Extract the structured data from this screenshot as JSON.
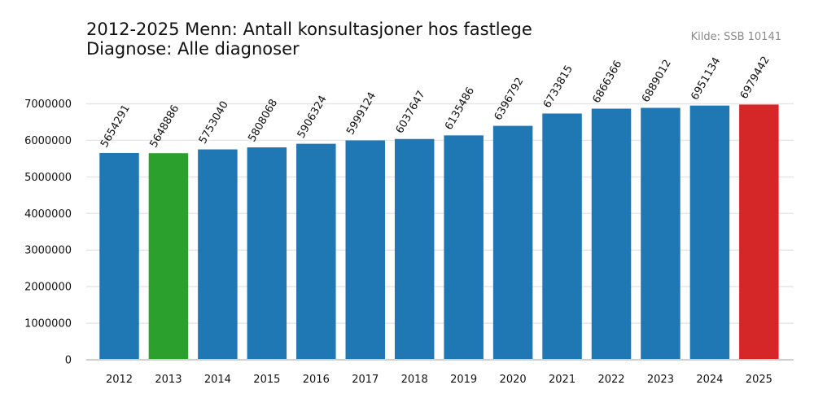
{
  "header": {
    "title_line1": "2012-2025 Menn: Antall konsultasjoner hos fastlege",
    "title_line2": "Diagnose: Alle diagnoser",
    "source": "Kilde: SSB 10141"
  },
  "colors": {
    "default_bar": "#1f77b4",
    "first_highlight": "#2ca02c",
    "last_highlight": "#d62728",
    "grid": "#e6e6e6",
    "axis": "#d0d0d0",
    "text": "#111111"
  },
  "chart_data": {
    "type": "bar",
    "title": "2012-2025 Menn: Antall konsultasjoner hos fastlege",
    "subtitle": "Diagnose: Alle diagnoser",
    "categories": [
      "2012",
      "2013",
      "2014",
      "2015",
      "2016",
      "2017",
      "2018",
      "2019",
      "2020",
      "2021",
      "2022",
      "2023",
      "2024",
      "2025"
    ],
    "values": [
      5654291,
      5648886,
      5753040,
      5808068,
      5906324,
      5999124,
      6037647,
      6135486,
      6396792,
      6733815,
      6866366,
      6889012,
      6951134,
      6979442
    ],
    "bar_colors": [
      "#1f77b4",
      "#2ca02c",
      "#1f77b4",
      "#1f77b4",
      "#1f77b4",
      "#1f77b4",
      "#1f77b4",
      "#1f77b4",
      "#1f77b4",
      "#1f77b4",
      "#1f77b4",
      "#1f77b4",
      "#1f77b4",
      "#d62728"
    ],
    "yticks": [
      0,
      1000000,
      2000000,
      3000000,
      4000000,
      5000000,
      6000000,
      7000000
    ],
    "ylim": [
      0,
      7000000
    ],
    "grid": true,
    "legend": "none"
  }
}
